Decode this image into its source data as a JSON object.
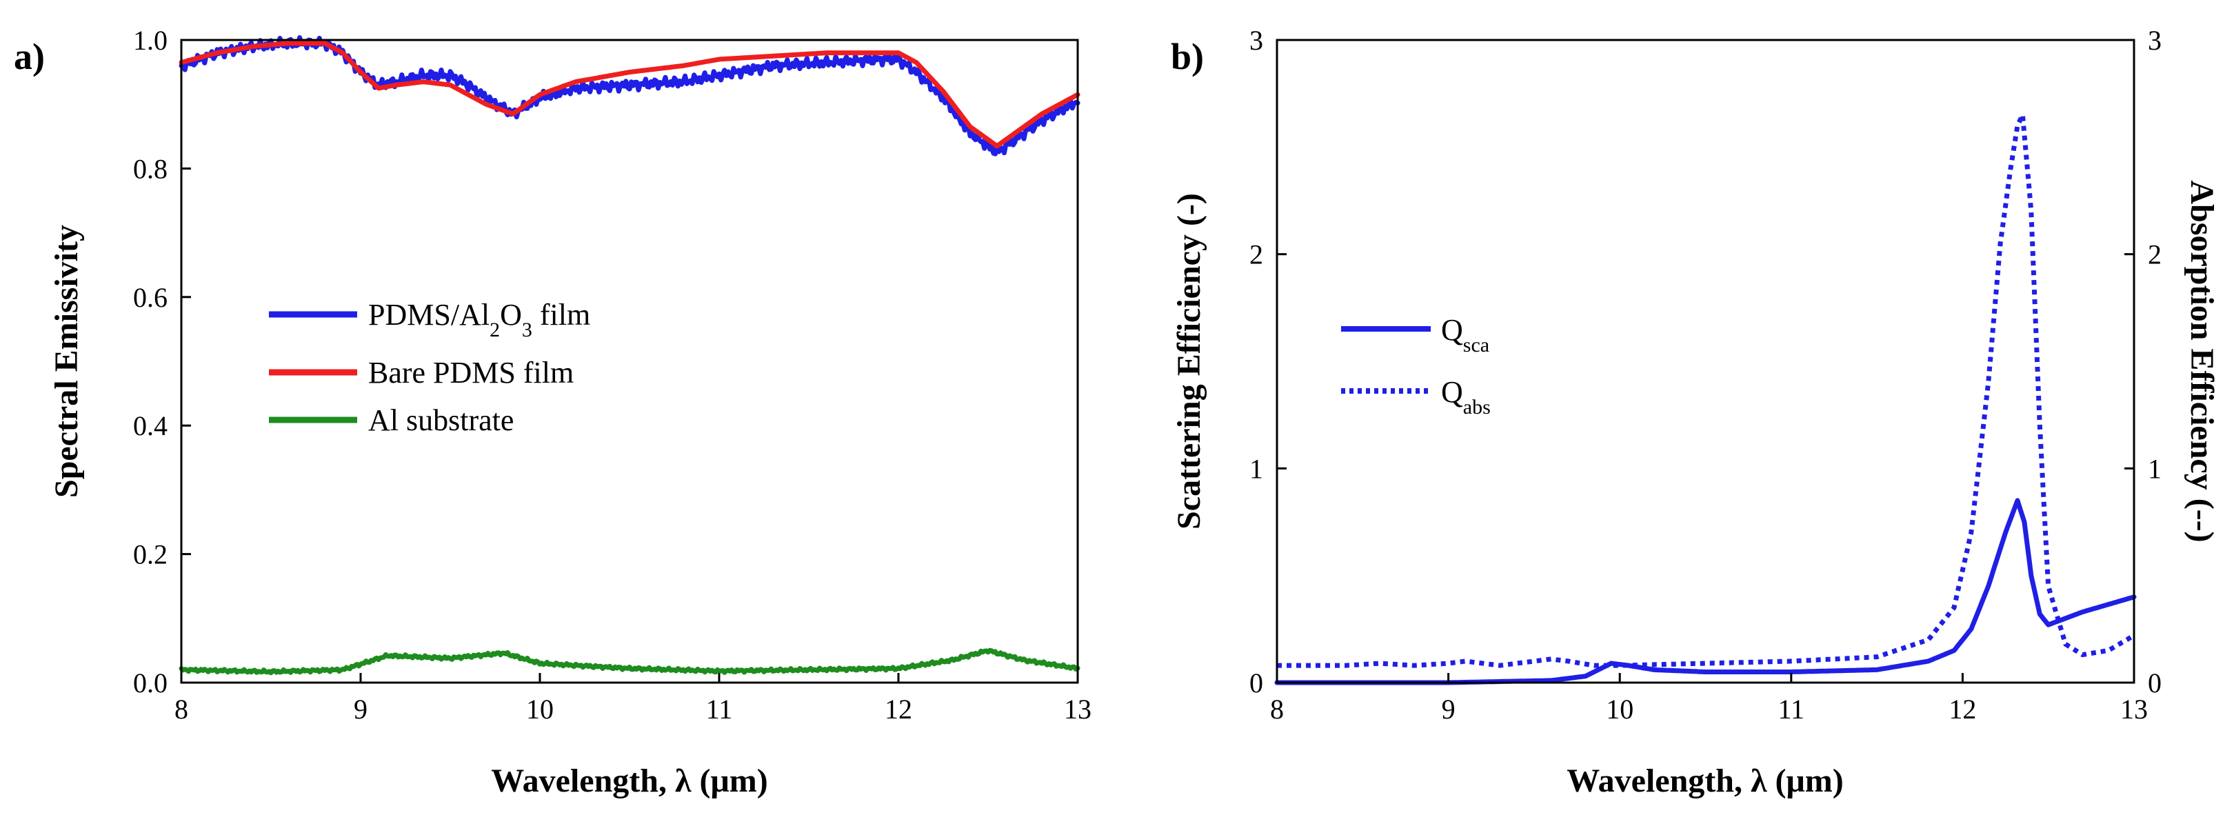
{
  "chart_data": [
    {
      "panel_label": "a)",
      "type": "line",
      "xlabel": "Wavelength, λ (μm)",
      "ylabel": "Spectral Emissivity",
      "xlim": [
        8,
        13
      ],
      "ylim": [
        0,
        1.0
      ],
      "xticks": [
        "8",
        "9",
        "10",
        "11",
        "12",
        "13"
      ],
      "yticks": [
        "0.0",
        "0.2",
        "0.4",
        "0.6",
        "0.8",
        "1.0"
      ],
      "legend_position": "center-left",
      "series": [
        {
          "name": "PDMS/Al2O3 film",
          "legend_label": {
            "base": "PDMS/Al",
            "sub1": "2",
            "mid": "O",
            "sub2": "3",
            "tail": " film"
          },
          "color": "#1f1fe6",
          "style": "solid-noisy",
          "x": [
            8.0,
            8.2,
            8.4,
            8.6,
            8.8,
            8.9,
            9.0,
            9.1,
            9.2,
            9.35,
            9.5,
            9.6,
            9.7,
            9.85,
            10.0,
            10.2,
            10.5,
            10.8,
            11.0,
            11.3,
            11.6,
            11.9,
            12.0,
            12.1,
            12.25,
            12.4,
            12.55,
            12.65,
            12.8,
            13.0
          ],
          "y": [
            0.96,
            0.98,
            0.99,
            0.995,
            0.995,
            0.98,
            0.95,
            0.93,
            0.935,
            0.945,
            0.945,
            0.93,
            0.91,
            0.885,
            0.91,
            0.925,
            0.93,
            0.935,
            0.945,
            0.96,
            0.965,
            0.97,
            0.97,
            0.95,
            0.91,
            0.855,
            0.825,
            0.845,
            0.875,
            0.905
          ]
        },
        {
          "name": "Bare PDMS film",
          "color": "#ef1f1f",
          "style": "solid",
          "x": [
            8.0,
            8.2,
            8.4,
            8.6,
            8.8,
            8.9,
            9.0,
            9.1,
            9.2,
            9.35,
            9.5,
            9.6,
            9.7,
            9.85,
            10.0,
            10.2,
            10.5,
            10.8,
            11.0,
            11.3,
            11.6,
            11.9,
            12.0,
            12.1,
            12.25,
            12.4,
            12.55,
            12.65,
            12.8,
            13.0
          ],
          "y": [
            0.965,
            0.98,
            0.99,
            0.995,
            0.995,
            0.98,
            0.95,
            0.925,
            0.93,
            0.935,
            0.93,
            0.915,
            0.9,
            0.885,
            0.915,
            0.935,
            0.95,
            0.96,
            0.97,
            0.975,
            0.98,
            0.98,
            0.98,
            0.965,
            0.92,
            0.865,
            0.835,
            0.855,
            0.885,
            0.915
          ]
        },
        {
          "name": "Al substrate",
          "color": "#1e8c1e",
          "style": "solid-noisy",
          "x": [
            8.0,
            8.5,
            8.9,
            9.15,
            9.5,
            9.8,
            10.0,
            10.5,
            11.0,
            11.5,
            12.0,
            12.3,
            12.5,
            12.7,
            13.0
          ],
          "y": [
            0.02,
            0.017,
            0.02,
            0.042,
            0.038,
            0.046,
            0.03,
            0.022,
            0.018,
            0.02,
            0.022,
            0.035,
            0.05,
            0.035,
            0.022
          ]
        }
      ]
    },
    {
      "panel_label": "b)",
      "type": "line",
      "xlabel": "Wavelength, λ (μm)",
      "ylabel": "Scattering Efficiency (-)",
      "ylabel_right": "Absorption Efficiency (--)",
      "xlim": [
        8,
        13
      ],
      "ylim": [
        0,
        3
      ],
      "ylim_right": [
        0,
        3
      ],
      "xticks": [
        "8",
        "9",
        "10",
        "11",
        "12",
        "13"
      ],
      "yticks": [
        "0",
        "1",
        "2",
        "3"
      ],
      "yticks_right": [
        "0",
        "1",
        "2",
        "3"
      ],
      "legend_position": "upper-left",
      "series": [
        {
          "name": "Qsca",
          "legend_label": {
            "base": "Q",
            "sub": "sca"
          },
          "color": "#1f1fe6",
          "style": "solid",
          "axis": "left",
          "x": [
            8.0,
            9.0,
            9.6,
            9.8,
            9.9,
            9.95,
            10.05,
            10.2,
            10.5,
            11.0,
            11.5,
            11.8,
            11.95,
            12.05,
            12.15,
            12.25,
            12.32,
            12.36,
            12.4,
            12.45,
            12.5,
            12.6,
            12.7,
            13.0
          ],
          "y": [
            0.0,
            0.0,
            0.01,
            0.03,
            0.07,
            0.09,
            0.08,
            0.06,
            0.05,
            0.05,
            0.06,
            0.1,
            0.15,
            0.25,
            0.45,
            0.7,
            0.85,
            0.75,
            0.5,
            0.32,
            0.27,
            0.3,
            0.33,
            0.4
          ]
        },
        {
          "name": "Qabs",
          "legend_label": {
            "base": "Q",
            "sub": "abs"
          },
          "color": "#1f1fe6",
          "style": "dotted",
          "axis": "right",
          "x": [
            8.0,
            8.4,
            8.6,
            8.8,
            9.0,
            9.1,
            9.3,
            9.5,
            9.6,
            9.7,
            9.85,
            10.0,
            10.5,
            11.0,
            11.5,
            11.8,
            11.95,
            12.05,
            12.15,
            12.22,
            12.28,
            12.32,
            12.35,
            12.4,
            12.45,
            12.5,
            12.6,
            12.7,
            12.85,
            13.0
          ],
          "y": [
            0.08,
            0.08,
            0.09,
            0.08,
            0.09,
            0.1,
            0.08,
            0.1,
            0.11,
            0.1,
            0.08,
            0.08,
            0.09,
            0.1,
            0.12,
            0.2,
            0.35,
            0.7,
            1.4,
            2.05,
            2.4,
            2.6,
            2.65,
            2.2,
            1.2,
            0.45,
            0.18,
            0.13,
            0.15,
            0.22
          ]
        }
      ]
    }
  ]
}
